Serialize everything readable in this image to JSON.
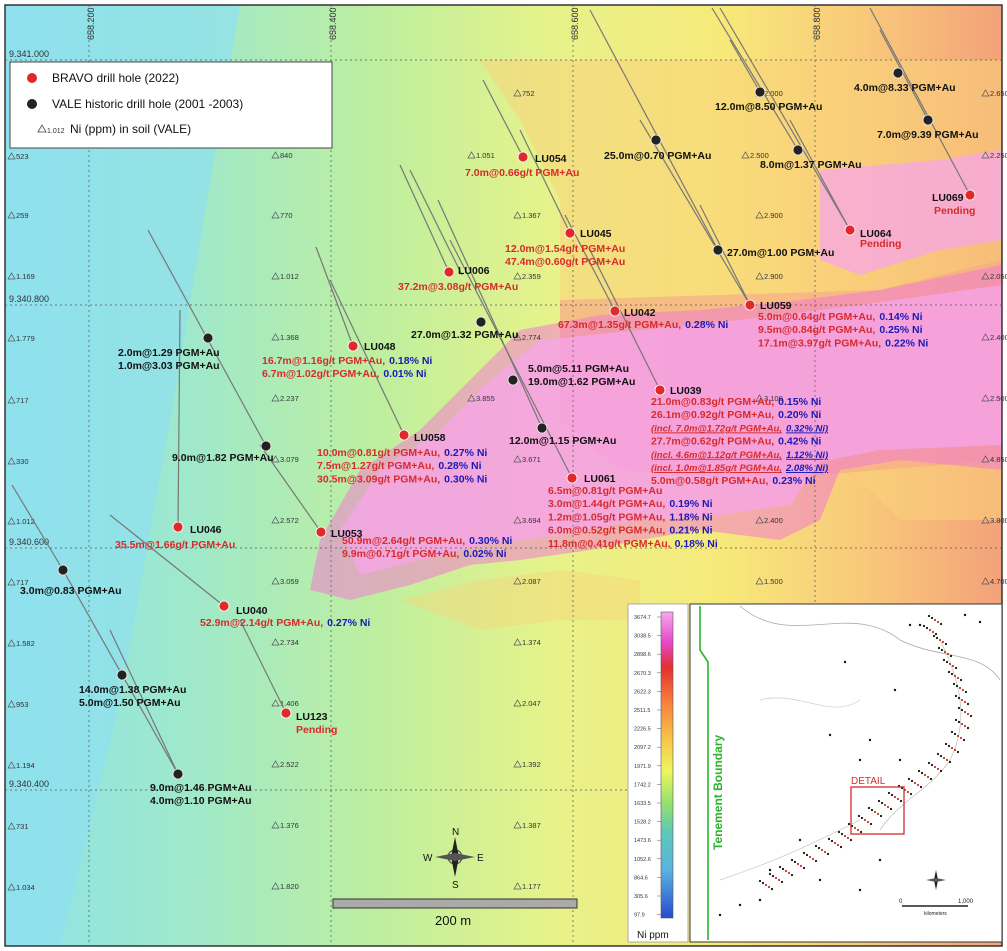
{
  "grid_labels": {
    "x": [
      "658.200",
      "658.400",
      "658.600",
      "658.800"
    ],
    "y": [
      "9.341.000",
      "9.340.800",
      "9.340.600",
      "9.340.400"
    ]
  },
  "legend": {
    "items": [
      {
        "label": "BRAVO drill hole (2022)",
        "color": "#e02a2a"
      },
      {
        "label": "VALE historic drill hole (2001 -2003)",
        "color": "#222222"
      },
      {
        "label": "Ni (ppm) in soil (VALE)",
        "prefix": "1.012"
      }
    ]
  },
  "bravo_holes": [
    {
      "name": "LU054",
      "intercepts": [
        {
          "text": "7.0m@0.66g/t PGM+Au",
          "color": "red"
        }
      ]
    },
    {
      "name": "LU045",
      "intercepts": [
        {
          "text": "12.0m@1.54g/t PGM+Au",
          "color": "red"
        },
        {
          "text": "47.4m@0.60g/t PGM+Au",
          "color": "red"
        }
      ]
    },
    {
      "name": "LU006",
      "intercepts": [
        {
          "text": "37.2m@3.08g/t PGM+Au",
          "color": "red"
        }
      ]
    },
    {
      "name": "LU042",
      "intercepts": [
        {
          "text": "67.3m@1.35g/t  PGM+Au,",
          "color": "red",
          "extra": "0.28% Ni"
        }
      ]
    },
    {
      "name": "LU048",
      "intercepts": [
        {
          "text": "16.7m@1.16g/t PGM+Au,",
          "extra": "0.18% Ni"
        },
        {
          "text": "6.7m@1.02g/t PGM+Au,",
          "extra": "0.01% Ni"
        }
      ]
    },
    {
      "name": "LU058",
      "intercepts": [
        {
          "text": "10.0m@0.81g/t PGM+Au,",
          "extra": "0.27% Ni"
        },
        {
          "text": "7.5m@1.27g/t PGM+Au,",
          "extra": "0.28% Ni"
        },
        {
          "text": "30.5m@3.09g/t PGM+Au,",
          "extra": "0.30% Ni"
        }
      ]
    },
    {
      "name": "LU039",
      "intercepts": [
        {
          "text": "21.0m@0.83g/t PGM+Au,",
          "extra": "0.15% Ni"
        },
        {
          "text": "26.1m@0.92g/t PGM+Au,",
          "extra": "0.20% Ni"
        },
        {
          "text": "(incl. 7.0m@1.72g/t PGM+Au,",
          "extra": "0.32% Ni)",
          "italic": true
        },
        {
          "text": "27.7m@0.62g/t PGM+Au,",
          "extra": "0.42% Ni"
        },
        {
          "text": "(incl. 4.6m@1.12g/t PGM+Au,",
          "extra": "1.12% Ni)",
          "italic": true
        },
        {
          "text": "(incl. 1.0m@1.85g/t PGM+Au,",
          "extra": "2.08% Ni)",
          "italic": true
        },
        {
          "text": "5.0m@0.58g/t PGM+Au,",
          "extra": "0.23% Ni"
        }
      ]
    },
    {
      "name": "LU061",
      "intercepts": [
        {
          "text": "6.5m@0.81g/t PGM+Au",
          "extra": ""
        },
        {
          "text": "3.0m@1.44g/t PGM+Au,",
          "extra": "0.19% Ni"
        },
        {
          "text": "1.2m@1.05g/t PGM+Au,",
          "extra": "1.18% Ni"
        },
        {
          "text": "6.0m@0.52g/t PGM+Au,",
          "extra": "0.21% Ni"
        },
        {
          "text": "11.8m@0.41g/t PGM+Au,",
          "extra": "0.18% Ni"
        }
      ]
    },
    {
      "name": "LU046",
      "intercepts": [
        {
          "text": "35.5m@1.66g/t PGM+Au",
          "extra": ""
        }
      ]
    },
    {
      "name": "LU053",
      "intercepts": [
        {
          "text": "50.9m@2.64g/t PGM+Au,",
          "extra": "0.30% Ni"
        },
        {
          "text": "9.9m@0.71g/t PGM+Au,",
          "extra": "0.02% Ni"
        }
      ]
    },
    {
      "name": "LU040",
      "intercepts": [
        {
          "text": "52.9m@2.14g/t PGM+Au,",
          "extra": "0.27% Ni"
        }
      ]
    },
    {
      "name": "LU123",
      "status": "Pending"
    },
    {
      "name": "LU059",
      "intercepts": [
        {
          "text": "5.0m@0.64g/t PGM+Au,",
          "extra": "0.14% Ni"
        },
        {
          "text": "9.5m@0.84g/t PGM+Au,",
          "extra": "0.25% Ni"
        },
        {
          "text": "17.1m@3.97g/t PGM+Au,",
          "extra": "0.22% Ni"
        }
      ]
    },
    {
      "name": "LU064",
      "status": "Pending"
    },
    {
      "name": "LU069",
      "status": "Pending"
    }
  ],
  "vale_holes": [
    {
      "lines": [
        "4.0m@8.33 PGM+Au"
      ]
    },
    {
      "lines": [
        "12.0m@8.50 PGM+Au"
      ]
    },
    {
      "lines": [
        "7.0m@9.39 PGM+Au"
      ]
    },
    {
      "lines": [
        "25.0m@0.70 PGM+Au"
      ]
    },
    {
      "lines": [
        "8.0m@1.37 PGM+Au"
      ]
    },
    {
      "lines": [
        "27.0m@1.00 PGM+Au"
      ]
    },
    {
      "lines": [
        "27.0m@1.32 PGM+Au"
      ]
    },
    {
      "lines": [
        "5.0m@5.11 PGM+Au",
        "19.0m@1.62 PGM+Au"
      ]
    },
    {
      "lines": [
        "12.0m@1.15 PGM+Au"
      ]
    },
    {
      "lines": [
        "2.0m@1.29 PGM+Au",
        "1.0m@3.03 PGM+Au"
      ]
    },
    {
      "lines": [
        "9.0m@1.82 PGM+Au"
      ]
    },
    {
      "lines": [
        "3.0m@0.83 PGM+Au"
      ]
    },
    {
      "lines": [
        "14.0m@1.38 PGM+Au",
        "5.0m@1.50 PGM+Au"
      ]
    },
    {
      "lines": [
        "9.0m@1.46 PGM+Au",
        "4.0m@1.10 PGM+Au"
      ]
    }
  ],
  "soil_values": [
    "523",
    "259",
    "1.169",
    "1.779",
    "717",
    "330",
    "1.012",
    "717",
    "1.582",
    "953",
    "1.194",
    "731",
    "1.034",
    "840",
    "770",
    "1.012",
    "1.368",
    "2.237",
    "3.079",
    "2.572",
    "3.059",
    "2.734",
    "1.406",
    "2.522",
    "1.376",
    "1.820",
    "752",
    "1.051",
    "1.367",
    "2.359",
    "2.774",
    "3.855",
    "3.671",
    "3.694",
    "2.087",
    "1.374",
    "2.047",
    "1.392",
    "1.387",
    "1.177",
    "2.000",
    "2.500",
    "2.900",
    "2.900",
    "3.100",
    "2.400",
    "1.500",
    "2.650",
    "2.250",
    "2.050",
    "2.400",
    "2.500",
    "4.850",
    "3.800",
    "4.700"
  ],
  "scale_bar": {
    "label": "200 m"
  },
  "north_arrow": {
    "n": "N",
    "s": "S",
    "e": "E",
    "w": "W"
  },
  "color_scale": {
    "label": "Ni ppm",
    "ticks": [
      "3674.7",
      "3038.5",
      "2898.6",
      "2670.3",
      "2622.3",
      "2511.5",
      "2226.5",
      "2097.2",
      "1971.9",
      "1742.2",
      "1633.5",
      "1528.2",
      "1473.6",
      "1052.6",
      "864.6",
      "305.6",
      "97.9"
    ],
    "colors": [
      "#f7a8ee",
      "#f07be0",
      "#e548c8",
      "#e0302f",
      "#f05a3a",
      "#f8843d",
      "#f8a63f",
      "#f8c64a",
      "#f6e45a",
      "#eef55e",
      "#c8ef5f",
      "#98e26c",
      "#6fd58a",
      "#5cc8b6",
      "#5ab4e0",
      "#4a86e8",
      "#2a4ad0"
    ]
  },
  "inset": {
    "tenement_label": "Tenement  Boundary",
    "detail_label": "DETAIL",
    "scale_ticks": [
      "0",
      "1,000"
    ],
    "scale_unit": "kilometers"
  }
}
